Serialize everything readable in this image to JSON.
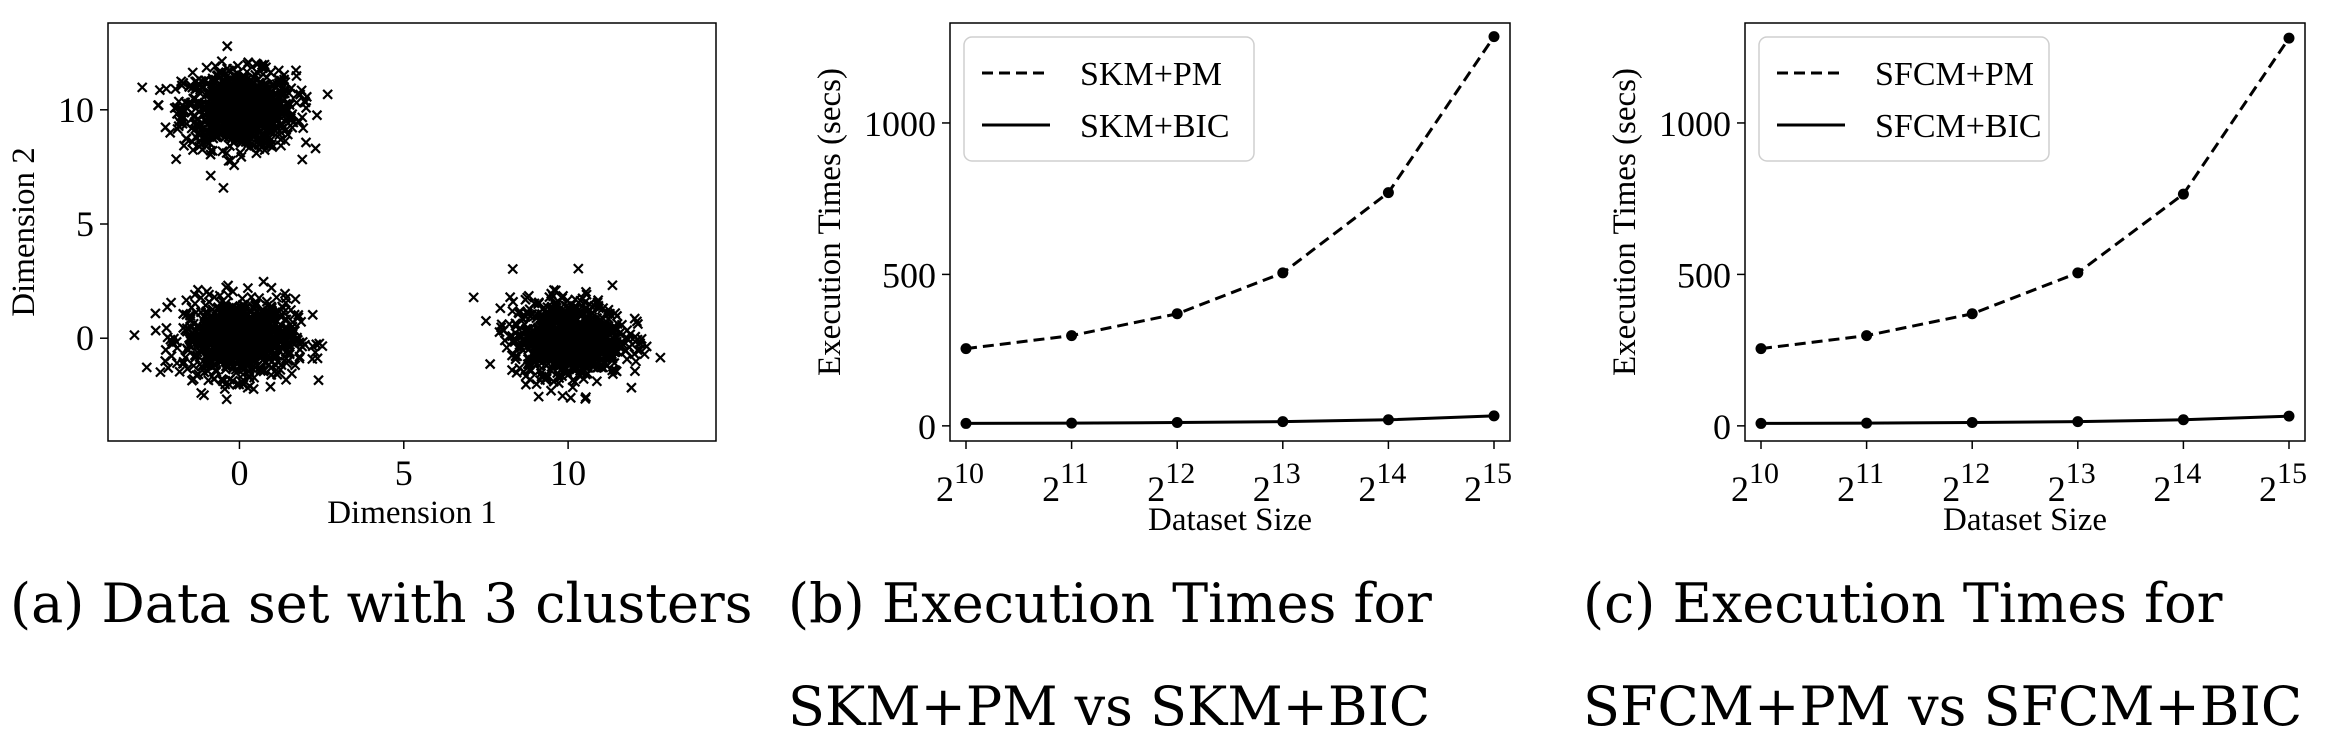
{
  "charts": [
    {
      "id": "a",
      "chart_data": {
        "type": "scatter",
        "marker": "x",
        "xlabel": "Dimension 1",
        "ylabel": "Dimension 2",
        "xlim": [
          -4,
          14.5
        ],
        "ylim": [
          -4.5,
          13.8
        ],
        "xticks": [
          0,
          5,
          10
        ],
        "yticks": [
          0,
          5,
          10
        ],
        "xtick_labels": [
          "0",
          "5",
          "10"
        ],
        "ytick_labels": [
          "0",
          "5",
          "10"
        ],
        "clusters": [
          {
            "center_x": 0,
            "center_y": 10,
            "spread": 0.85
          },
          {
            "center_x": 0,
            "center_y": 0,
            "spread": 0.85
          },
          {
            "center_x": 10,
            "center_y": 0,
            "spread": 0.85
          }
        ],
        "points_per_cluster": 900
      },
      "caption": [
        "(a) Data set with 3 clusters"
      ]
    },
    {
      "id": "b",
      "chart_data": {
        "type": "line",
        "xlabel": "Dataset Size",
        "ylabel": "Execution Times (secs)",
        "x_base": "2",
        "x_exponents": [
          "10",
          "11",
          "12",
          "13",
          "14",
          "15"
        ],
        "ylim": [
          -50,
          1330
        ],
        "yticks": [
          0,
          500,
          1000
        ],
        "ytick_labels": [
          "0",
          "500",
          "1000"
        ],
        "series": [
          {
            "name": "SKM+PM",
            "style": "dashed",
            "values": [
              255,
              298,
              370,
              505,
              770,
              1285
            ]
          },
          {
            "name": "SKM+BIC",
            "style": "solid",
            "values": [
              8,
              9,
              11,
              14,
              20,
              33
            ]
          }
        ],
        "legend_position": "top-left"
      },
      "caption": [
        "(b)   Execution   Times   for",
        "SKM+PM vs SKM+BIC"
      ]
    },
    {
      "id": "c",
      "chart_data": {
        "type": "line",
        "xlabel": "Dataset Size",
        "ylabel": "Execution Times (secs)",
        "x_base": "2",
        "x_exponents": [
          "10",
          "11",
          "12",
          "13",
          "14",
          "15"
        ],
        "ylim": [
          -50,
          1330
        ],
        "yticks": [
          0,
          500,
          1000
        ],
        "ytick_labels": [
          "0",
          "500",
          "1000"
        ],
        "series": [
          {
            "name": "SFCM+PM",
            "style": "dashed",
            "values": [
              255,
              298,
              370,
              505,
              765,
              1280
            ]
          },
          {
            "name": "SFCM+BIC",
            "style": "solid",
            "values": [
              8,
              9,
              11,
              14,
              20,
              32
            ]
          }
        ],
        "legend_position": "top-left"
      },
      "caption": [
        "(c)   Execution   Times   for",
        "SFCM+PM vs SFCM+BIC"
      ]
    }
  ]
}
